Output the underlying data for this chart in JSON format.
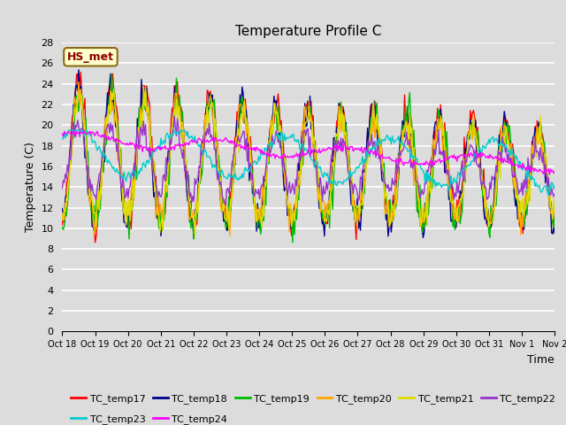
{
  "title": "Temperature Profile C",
  "xlabel": "Time",
  "ylabel": "Temperature (C)",
  "ylim": [
    0,
    28
  ],
  "yticks": [
    0,
    2,
    4,
    6,
    8,
    10,
    12,
    14,
    16,
    18,
    20,
    22,
    24,
    26,
    28
  ],
  "xtick_labels": [
    "Oct 18",
    "Oct 19",
    "Oct 20",
    "Oct 21",
    "Oct 22",
    "Oct 23",
    "Oct 24",
    "Oct 25",
    "Oct 26",
    "Oct 27",
    "Oct 28",
    "Oct 29",
    "Oct 30",
    "Oct 31",
    "Nov 1",
    "Nov 2"
  ],
  "annotation_label": "HS_met",
  "annotation_color": "#8B0000",
  "annotation_bg": "#FFFFCC",
  "annotation_border": "#8B6914",
  "series": [
    {
      "name": "TC_temp17",
      "color": "#FF0000"
    },
    {
      "name": "TC_temp18",
      "color": "#00008B"
    },
    {
      "name": "TC_temp19",
      "color": "#00BB00"
    },
    {
      "name": "TC_temp20",
      "color": "#FFA500"
    },
    {
      "name": "TC_temp21",
      "color": "#DDDD00"
    },
    {
      "name": "TC_temp22",
      "color": "#9933CC"
    },
    {
      "name": "TC_temp23",
      "color": "#00CCCC"
    },
    {
      "name": "TC_temp24",
      "color": "#FF00FF"
    }
  ],
  "bg_color": "#DCDCDC",
  "plot_bg_color": "#DCDCDC",
  "grid_color": "#FFFFFF",
  "n_points": 480
}
